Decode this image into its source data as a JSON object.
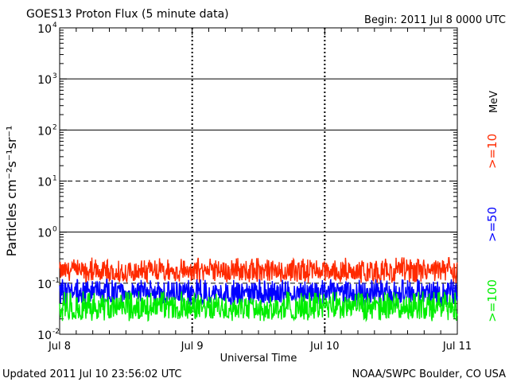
{
  "header": {
    "title": "GOES13 Proton Flux (5 minute data)",
    "begin": "Begin: 2011 Jul 8 0000 UTC"
  },
  "footer": {
    "updated": "Updated 2011 Jul 10 23:56:02 UTC",
    "credit": "NOAA/SWPC Boulder, CO USA"
  },
  "colors": {
    "ge10": "#ff2a00",
    "ge50": "#0000ff",
    "ge100": "#00ee00",
    "axis": "#000000",
    "background": "#ffffff"
  },
  "chart_data": {
    "type": "line",
    "title": "GOES13 Proton Flux (5 minute data)",
    "xlabel": "Universal Time",
    "ylabel": "Particles cm⁻²s⁻¹sr⁻¹",
    "units_label": "MeV",
    "y_scale": "log",
    "ylim": [
      0.01,
      10000
    ],
    "xlim": [
      "2011-07-08 00:00",
      "2011-07-11 00:00"
    ],
    "x_ticks": [
      "Jul 8",
      "Jul 9",
      "Jul 10",
      "Jul 11"
    ],
    "y_ticks": [
      {
        "base": "10",
        "exp": "4",
        "value": 10000
      },
      {
        "base": "10",
        "exp": "3",
        "value": 1000
      },
      {
        "base": "10",
        "exp": "2",
        "value": 100
      },
      {
        "base": "10",
        "exp": "1",
        "value": 10
      },
      {
        "base": "10",
        "exp": "0",
        "value": 1
      },
      {
        "base": "10",
        "exp": "-1",
        "value": 0.1
      },
      {
        "base": "10",
        "exp": "-2",
        "value": 0.01
      }
    ],
    "solid_gridlines": [
      1000,
      100,
      1
    ],
    "dashed_gridlines": [
      10,
      0.1
    ],
    "series": [
      {
        "name": ">=10",
        "color": "#ff2a00",
        "typical": 0.17,
        "range": [
          0.1,
          0.32
        ]
      },
      {
        "name": ">=50",
        "color": "#0000ff",
        "typical": 0.065,
        "range": [
          0.035,
          0.12
        ]
      },
      {
        "name": ">=100",
        "color": "#00ee00",
        "typical": 0.033,
        "range": [
          0.018,
          0.07
        ]
      }
    ]
  }
}
